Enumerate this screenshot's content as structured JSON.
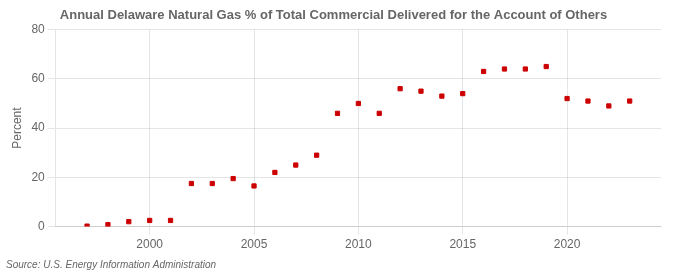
{
  "chart_data": {
    "type": "scatter",
    "title": "Annual Delaware Natural Gas % of Total Commercial Delivered for the Account of Others",
    "ylabel": "Percent",
    "annotations": [
      "Source: U.S. Energy Information Administration"
    ],
    "x": [
      1997,
      1998,
      1999,
      2000,
      2001,
      2002,
      2003,
      2004,
      2005,
      2006,
      2007,
      2008,
      2009,
      2010,
      2011,
      2012,
      2013,
      2014,
      2015,
      2016,
      2017,
      2018,
      2019,
      2020,
      2021,
      2022,
      2023
    ],
    "values": [
      0.2,
      0.8,
      2.0,
      2.5,
      2.5,
      17.5,
      17.5,
      19.5,
      16.5,
      22.0,
      25.0,
      29.0,
      46.0,
      50.0,
      46.0,
      56.0,
      55.0,
      53.0,
      54.0,
      63.0,
      64.0,
      64.0,
      65.0,
      52.0,
      51.0,
      49.0,
      51.0
    ],
    "color": "#cc0000",
    "marker": "square",
    "xlim": [
      1995.5,
      2024.5
    ],
    "xticks": [
      2000,
      2005,
      2010,
      2015,
      2020
    ],
    "ylim": [
      0,
      80
    ],
    "yticks": [
      0,
      20,
      40,
      60,
      80
    ],
    "grid": true
  }
}
